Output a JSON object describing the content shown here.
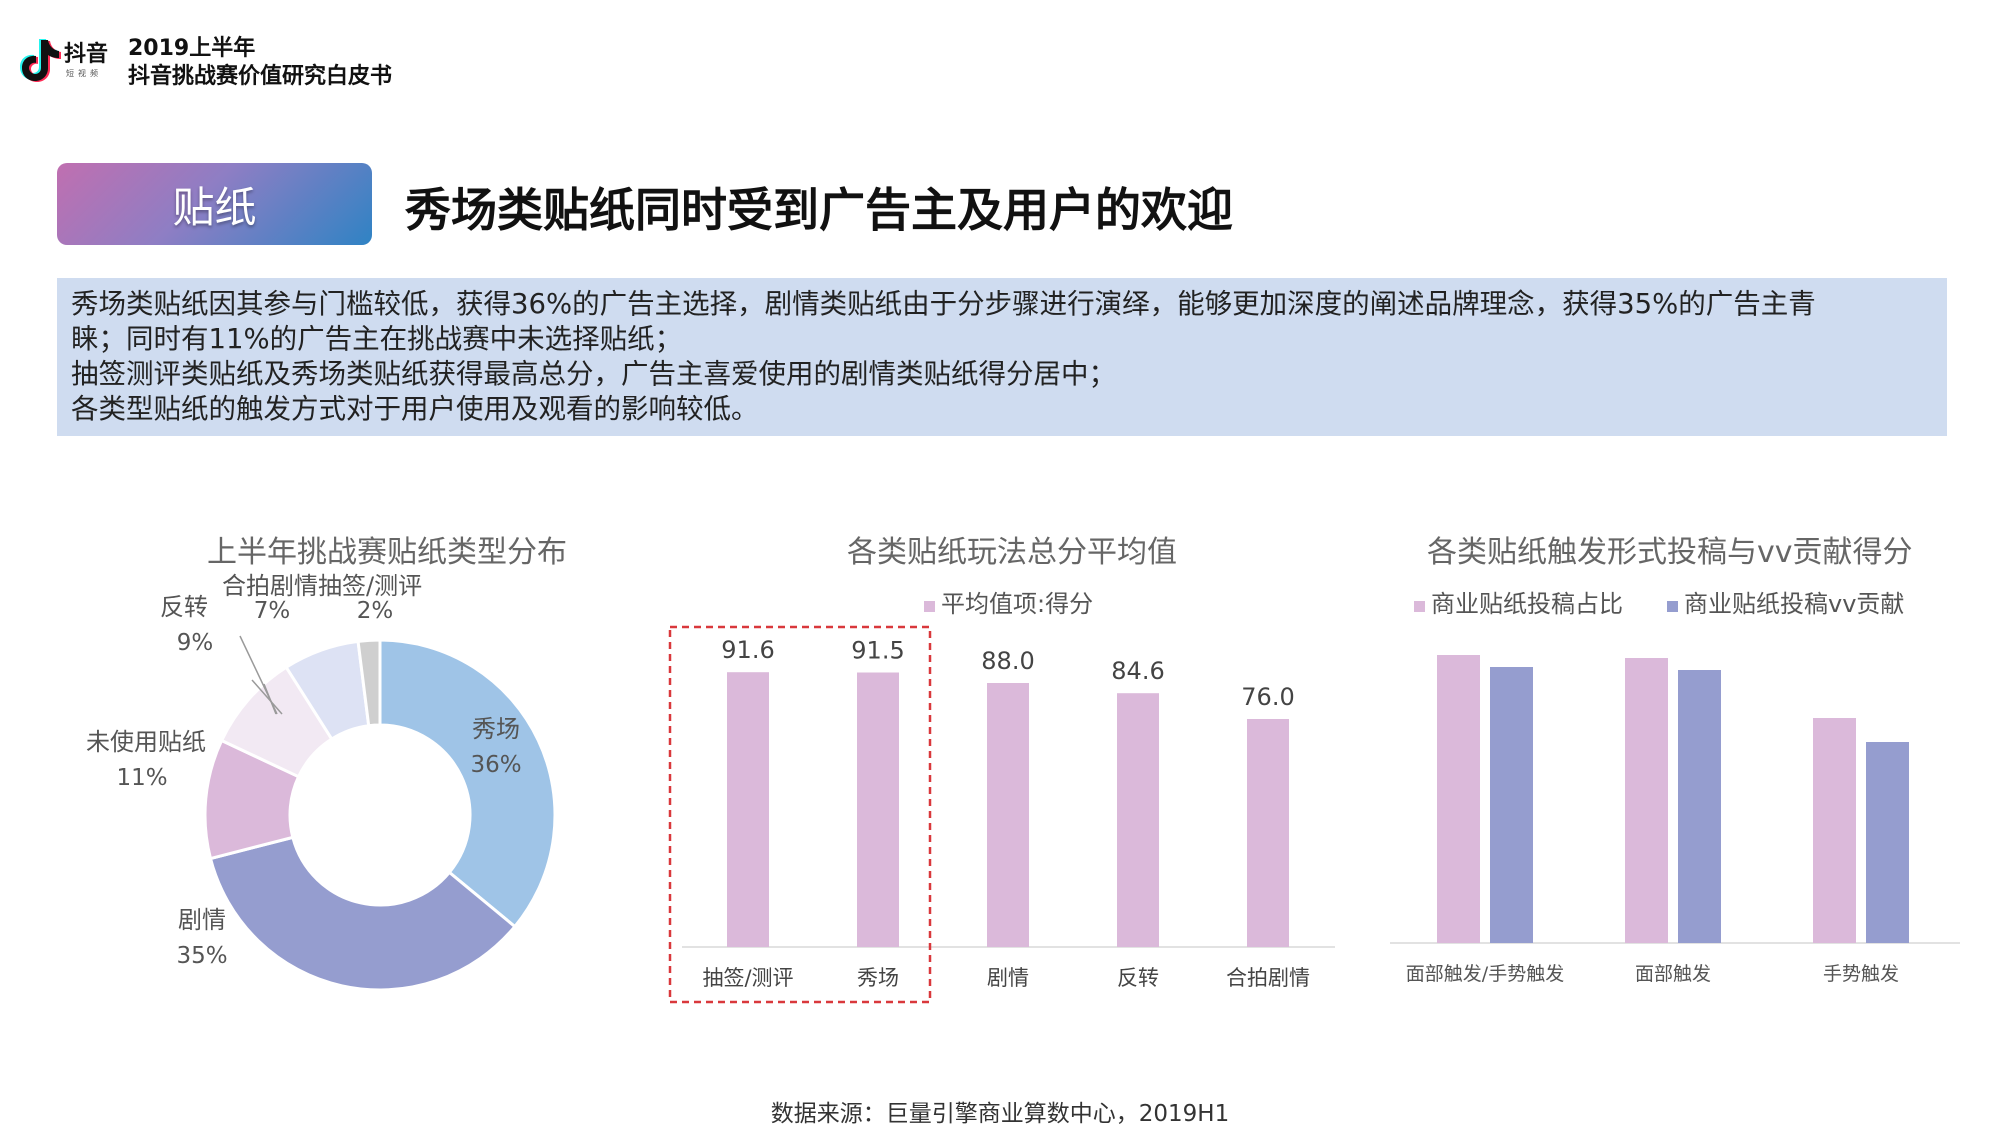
{
  "header": {
    "logo_text": "抖音",
    "logo_sub": "短视频",
    "year_line": "2019上半年",
    "report_line": "抖音挑战赛价值研究白皮书"
  },
  "tag_label": "贴纸",
  "main_title": "秀场类贴纸同时受到广告主及用户的欢迎",
  "summary": {
    "lines": [
      "秀场类贴纸因其参与门槛较低，获得36%的广告主选择，剧情类贴纸由于分步骤进行演绎，能够更加深度的阐述品牌理念，获得35%的广告主青",
      "睐；同时有11%的广告主在挑战赛中未选择贴纸；",
      "抽签测评类贴纸及秀场类贴纸获得最高总分，广告主喜爱使用的剧情类贴纸得分居中；",
      "各类型贴纸的触发方式对于用户使用及观看的影响较低。"
    ]
  },
  "colors": {
    "pink": "#dbb9da",
    "blue_purple": "#959dcf",
    "light_blue": "#9fc4e7",
    "highlight_red": "#d9383c"
  },
  "chart_data": [
    {
      "type": "pie",
      "title": "上半年挑战赛贴纸类型分布",
      "donut": true,
      "slices": [
        {
          "name": "秀场",
          "value": 36,
          "label": "36%",
          "color": "#9fc4e7"
        },
        {
          "name": "剧情",
          "value": 35,
          "label": "35%",
          "color": "#959dcf"
        },
        {
          "name": "未使用贴纸",
          "value": 11,
          "label": "11%",
          "color": "#dbb9da"
        },
        {
          "name": "反转",
          "value": 9,
          "label": "9%",
          "color": "#f2e9f3"
        },
        {
          "name": "合拍剧情",
          "value": 7,
          "label": "7%",
          "color": "#dde2f4"
        },
        {
          "name": "抽签/测评",
          "value": 2,
          "label": "2%",
          "color": "#cfcfcf"
        }
      ],
      "top_label": "合拍剧情抽签/测评"
    },
    {
      "type": "bar",
      "title": "各类贴纸玩法总分平均值",
      "legend": [
        "平均值项:得分"
      ],
      "legend_position": "top",
      "categories": [
        "抽签/测评",
        "秀场",
        "剧情",
        "反转",
        "合拍剧情"
      ],
      "values": [
        91.6,
        91.5,
        88.0,
        84.6,
        76.0
      ],
      "value_labels": [
        "91.6",
        "91.5",
        "88.0",
        "84.6",
        "76.0"
      ],
      "ylim": [
        0,
        100
      ],
      "highlighted": [
        "抽签/测评",
        "秀场"
      ],
      "grid": false
    },
    {
      "type": "bar",
      "title": "各类贴纸触发形式投稿与vv贡献得分",
      "legend_position": "top",
      "categories": [
        "面部触发/手势触发",
        "面部触发",
        "手势触发"
      ],
      "series": [
        {
          "name": "商业贴纸投稿占比",
          "values": [
            96,
            95,
            75
          ],
          "color": "#dbb9da"
        },
        {
          "name": "商业贴纸投稿vv贡献",
          "values": [
            92,
            91,
            67
          ],
          "color": "#959dcf"
        }
      ],
      "ylim": [
        0,
        100
      ],
      "grid": false
    }
  ],
  "source": "数据来源：巨量引擎商业算数中心，2019H1"
}
